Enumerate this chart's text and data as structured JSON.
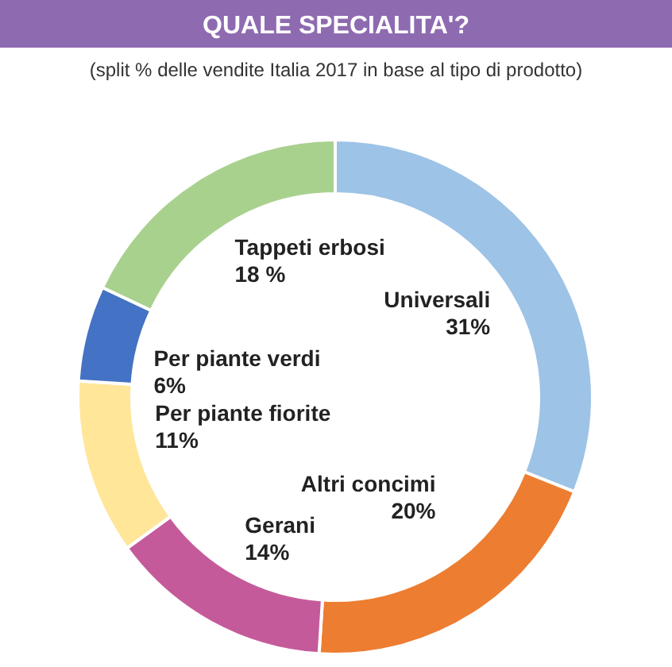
{
  "chart_data": {
    "type": "donut",
    "title": "QUALE SPECIALITA'?",
    "subtitle": "(split % delle vendite Italia 2017 in base al tipo di prodotto)",
    "categories": [
      "Universali",
      "Altri concimi",
      "Gerani",
      "Per piante fiorite",
      "Per piante verdi",
      "Tappeti erbosi"
    ],
    "values": [
      31,
      20,
      14,
      11,
      6,
      18
    ],
    "value_labels": [
      "31%",
      "20%",
      "14%",
      "11%",
      "6%",
      "18 %"
    ],
    "colors": [
      "#9dc3e6",
      "#ed7d31",
      "#c55a9b",
      "#ffe699",
      "#4472c4",
      "#a9d18e"
    ]
  }
}
